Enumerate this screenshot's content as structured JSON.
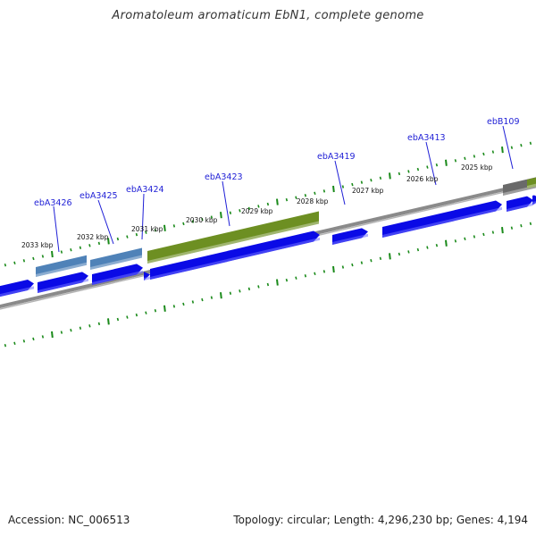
{
  "title": "Aromatoleum aromaticum EbN1, complete genome",
  "footer": {
    "accession": "Accession: NC_006513",
    "summary": "Topology: circular; Length: 4,296,230 bp; Genes: 4,194"
  },
  "kbp_ticks": [
    "2033 kbp",
    "2032 kbp",
    "2031 kbp",
    "2030 kbp",
    "2029 kbp",
    "2028 kbp",
    "2027 kbp",
    "2026 kbp",
    "2025 kbp"
  ],
  "gene_labels": [
    "ebA3426",
    "ebA3425",
    "ebA3424",
    "ebA3423",
    "ebA3419",
    "ebA3413",
    "ebB109"
  ],
  "colors": {
    "cds_blue": "#0a0ae6",
    "feature_steel": "#4f82b8",
    "feature_olive": "#6d8f22",
    "feature_gray": "#6a6a6a",
    "backbone": "#8a8a8a",
    "tick_green": "#1a8a1a",
    "label_blue": "#1f1fd6"
  }
}
